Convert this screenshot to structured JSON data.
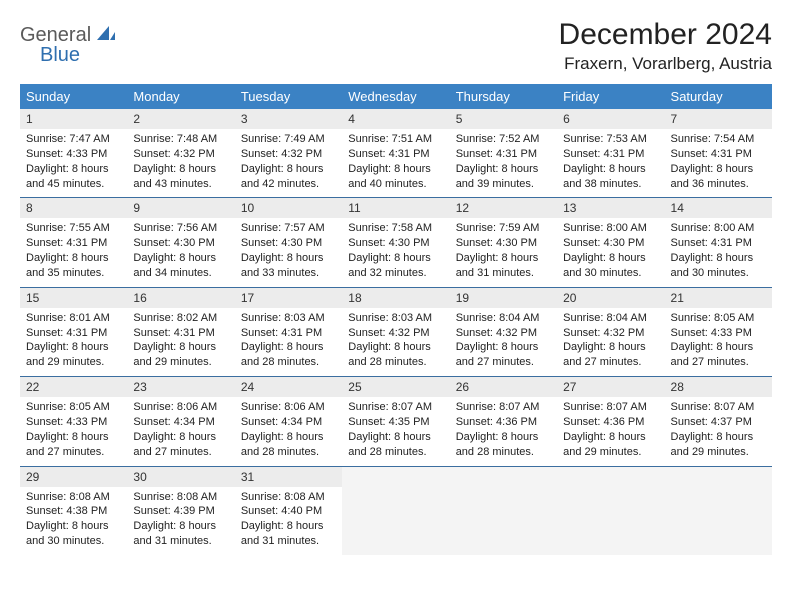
{
  "brand": {
    "part1": "General",
    "part2": "Blue"
  },
  "title": "December 2024",
  "location": "Fraxern, Vorarlberg, Austria",
  "colors": {
    "header_bg": "#3b82c4",
    "header_text": "#ffffff",
    "daynum_bg": "#ececec",
    "cell_border": "#3b6ea0",
    "logo_dark": "#5a5a5a",
    "logo_blue": "#2f6faf"
  },
  "day_headers": [
    "Sunday",
    "Monday",
    "Tuesday",
    "Wednesday",
    "Thursday",
    "Friday",
    "Saturday"
  ],
  "weeks": [
    [
      {
        "n": "1",
        "sr": "7:47 AM",
        "ss": "4:33 PM",
        "dl": "8 hours and 45 minutes."
      },
      {
        "n": "2",
        "sr": "7:48 AM",
        "ss": "4:32 PM",
        "dl": "8 hours and 43 minutes."
      },
      {
        "n": "3",
        "sr": "7:49 AM",
        "ss": "4:32 PM",
        "dl": "8 hours and 42 minutes."
      },
      {
        "n": "4",
        "sr": "7:51 AM",
        "ss": "4:31 PM",
        "dl": "8 hours and 40 minutes."
      },
      {
        "n": "5",
        "sr": "7:52 AM",
        "ss": "4:31 PM",
        "dl": "8 hours and 39 minutes."
      },
      {
        "n": "6",
        "sr": "7:53 AM",
        "ss": "4:31 PM",
        "dl": "8 hours and 38 minutes."
      },
      {
        "n": "7",
        "sr": "7:54 AM",
        "ss": "4:31 PM",
        "dl": "8 hours and 36 minutes."
      }
    ],
    [
      {
        "n": "8",
        "sr": "7:55 AM",
        "ss": "4:31 PM",
        "dl": "8 hours and 35 minutes."
      },
      {
        "n": "9",
        "sr": "7:56 AM",
        "ss": "4:30 PM",
        "dl": "8 hours and 34 minutes."
      },
      {
        "n": "10",
        "sr": "7:57 AM",
        "ss": "4:30 PM",
        "dl": "8 hours and 33 minutes."
      },
      {
        "n": "11",
        "sr": "7:58 AM",
        "ss": "4:30 PM",
        "dl": "8 hours and 32 minutes."
      },
      {
        "n": "12",
        "sr": "7:59 AM",
        "ss": "4:30 PM",
        "dl": "8 hours and 31 minutes."
      },
      {
        "n": "13",
        "sr": "8:00 AM",
        "ss": "4:30 PM",
        "dl": "8 hours and 30 minutes."
      },
      {
        "n": "14",
        "sr": "8:00 AM",
        "ss": "4:31 PM",
        "dl": "8 hours and 30 minutes."
      }
    ],
    [
      {
        "n": "15",
        "sr": "8:01 AM",
        "ss": "4:31 PM",
        "dl": "8 hours and 29 minutes."
      },
      {
        "n": "16",
        "sr": "8:02 AM",
        "ss": "4:31 PM",
        "dl": "8 hours and 29 minutes."
      },
      {
        "n": "17",
        "sr": "8:03 AM",
        "ss": "4:31 PM",
        "dl": "8 hours and 28 minutes."
      },
      {
        "n": "18",
        "sr": "8:03 AM",
        "ss": "4:32 PM",
        "dl": "8 hours and 28 minutes."
      },
      {
        "n": "19",
        "sr": "8:04 AM",
        "ss": "4:32 PM",
        "dl": "8 hours and 27 minutes."
      },
      {
        "n": "20",
        "sr": "8:04 AM",
        "ss": "4:32 PM",
        "dl": "8 hours and 27 minutes."
      },
      {
        "n": "21",
        "sr": "8:05 AM",
        "ss": "4:33 PM",
        "dl": "8 hours and 27 minutes."
      }
    ],
    [
      {
        "n": "22",
        "sr": "8:05 AM",
        "ss": "4:33 PM",
        "dl": "8 hours and 27 minutes."
      },
      {
        "n": "23",
        "sr": "8:06 AM",
        "ss": "4:34 PM",
        "dl": "8 hours and 27 minutes."
      },
      {
        "n": "24",
        "sr": "8:06 AM",
        "ss": "4:34 PM",
        "dl": "8 hours and 28 minutes."
      },
      {
        "n": "25",
        "sr": "8:07 AM",
        "ss": "4:35 PM",
        "dl": "8 hours and 28 minutes."
      },
      {
        "n": "26",
        "sr": "8:07 AM",
        "ss": "4:36 PM",
        "dl": "8 hours and 28 minutes."
      },
      {
        "n": "27",
        "sr": "8:07 AM",
        "ss": "4:36 PM",
        "dl": "8 hours and 29 minutes."
      },
      {
        "n": "28",
        "sr": "8:07 AM",
        "ss": "4:37 PM",
        "dl": "8 hours and 29 minutes."
      }
    ],
    [
      {
        "n": "29",
        "sr": "8:08 AM",
        "ss": "4:38 PM",
        "dl": "8 hours and 30 minutes."
      },
      {
        "n": "30",
        "sr": "8:08 AM",
        "ss": "4:39 PM",
        "dl": "8 hours and 31 minutes."
      },
      {
        "n": "31",
        "sr": "8:08 AM",
        "ss": "4:40 PM",
        "dl": "8 hours and 31 minutes."
      },
      null,
      null,
      null,
      null
    ]
  ],
  "labels": {
    "sunrise": "Sunrise: ",
    "sunset": "Sunset: ",
    "daylight": "Daylight: "
  }
}
